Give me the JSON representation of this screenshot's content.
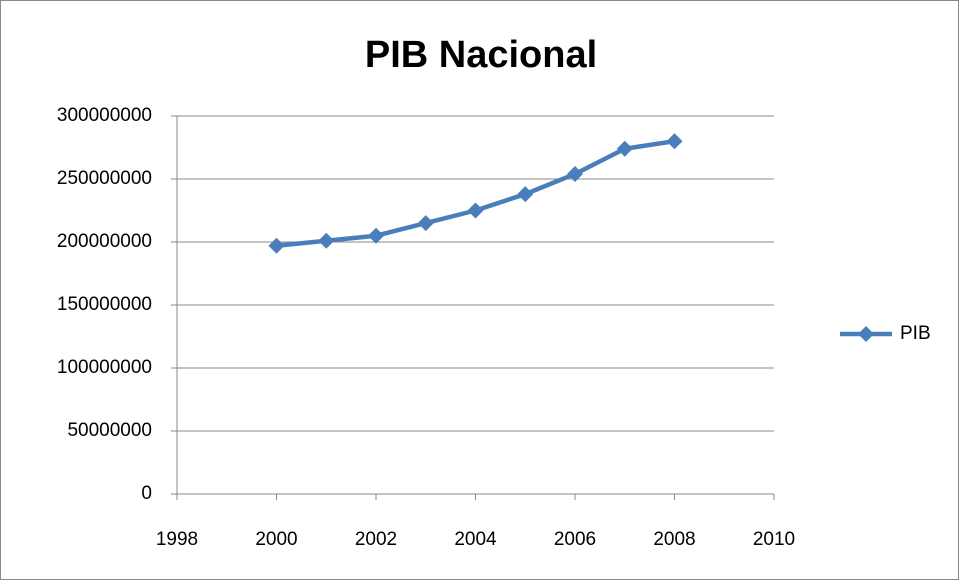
{
  "chart_data": {
    "type": "line",
    "title": "PIB Nacional",
    "x": [
      2000,
      2001,
      2002,
      2003,
      2004,
      2005,
      2006,
      2007,
      2008
    ],
    "series": [
      {
        "name": "PIB",
        "color": "#4a7ebb",
        "values": [
          197000000,
          201000000,
          205000000,
          215000000,
          225000000,
          238000000,
          254000000,
          274000000,
          280000000
        ]
      }
    ],
    "xlim": [
      1998,
      2010
    ],
    "xticks": [
      1998,
      2000,
      2002,
      2004,
      2006,
      2008,
      2010
    ],
    "ylim": [
      0,
      300000000
    ],
    "yticks": [
      0,
      50000000,
      100000000,
      150000000,
      200000000,
      250000000,
      300000000
    ],
    "grid": true,
    "legend": "right",
    "marker": "diamond"
  }
}
